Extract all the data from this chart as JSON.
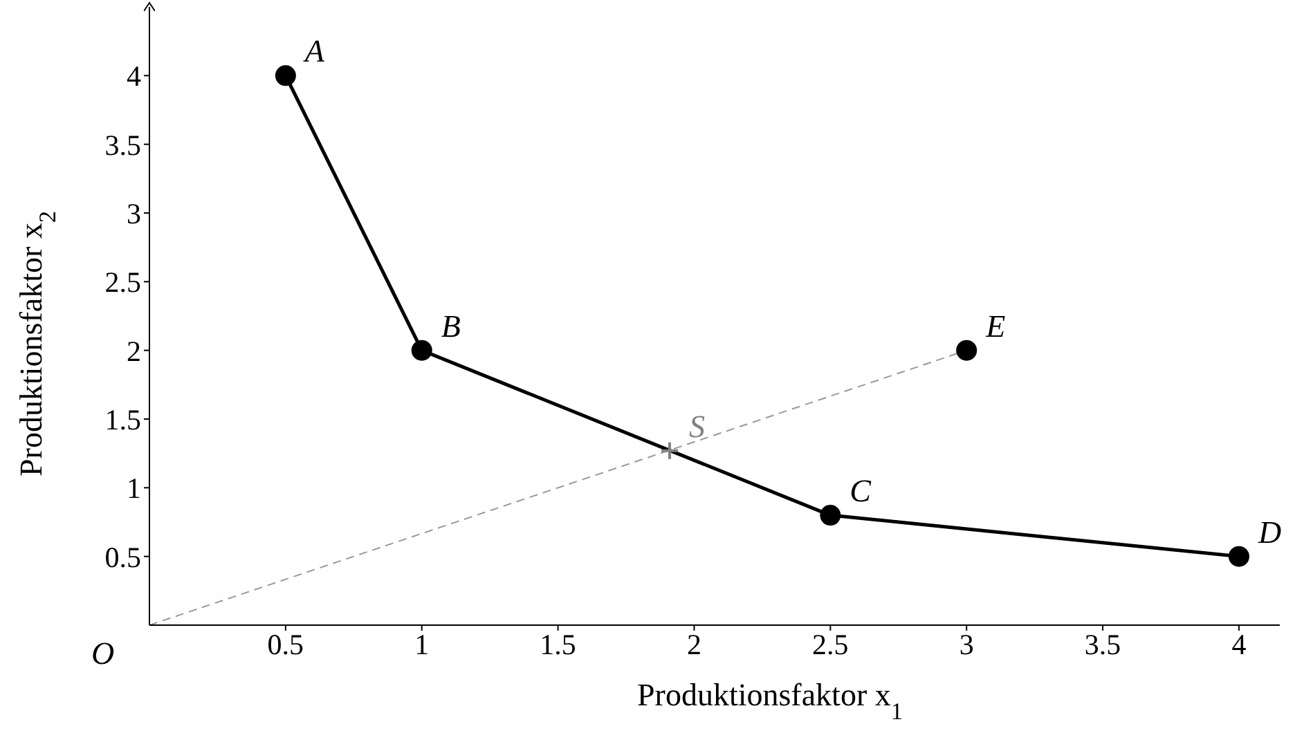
{
  "chart_data": {
    "type": "line",
    "xlabel": "Produktionsfaktor x$_{1}$",
    "ylabel": "Produktionsfaktor x$_{2}$",
    "xlim": [
      0,
      4.15
    ],
    "ylim": [
      0,
      4.5
    ],
    "xticks": [
      0.5,
      1,
      1.5,
      2,
      2.5,
      3,
      3.5,
      4
    ],
    "yticks": [
      0.5,
      1,
      1.5,
      2,
      2.5,
      3,
      3.5,
      4
    ],
    "series": [
      {
        "x": [
          0.5,
          1,
          2.5,
          4
        ],
        "values": [
          4,
          2,
          0.8,
          0.5
        ],
        "color": "#000000",
        "marker": "circle",
        "line_style": "solid"
      },
      {
        "type": "scatter",
        "x": [
          3
        ],
        "values": [
          2
        ],
        "color": "#000000",
        "marker": "circle"
      },
      {
        "type": "line",
        "x": [
          0,
          3
        ],
        "values": [
          0,
          2
        ],
        "color": "#999999",
        "marker": "none",
        "line_style": "dashed"
      },
      {
        "type": "scatter",
        "x": [
          1.91
        ],
        "values": [
          1.27
        ],
        "color": "#808080",
        "marker": "cross"
      }
    ],
    "annotations": [
      {
        "text": "A",
        "x": 0.5,
        "y": 4
      },
      {
        "text": "B",
        "x": 1,
        "y": 2
      },
      {
        "text": "C",
        "x": 2.5,
        "y": 0.8
      },
      {
        "text": "D",
        "x": 4,
        "y": 0.5
      },
      {
        "text": "E",
        "x": 3,
        "y": 2
      },
      {
        "text": "S",
        "x": 1.91,
        "y": 1.27
      },
      "O"
    ]
  }
}
